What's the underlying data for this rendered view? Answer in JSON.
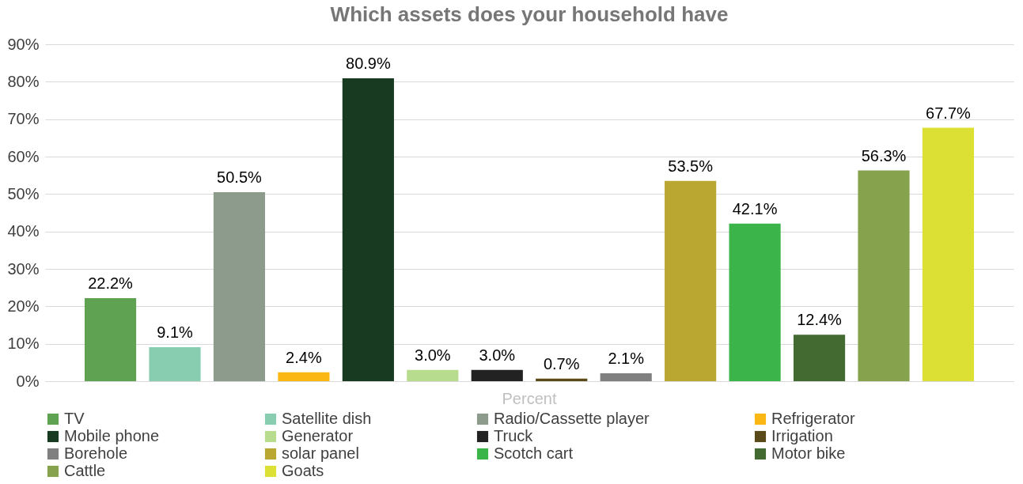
{
  "chart_data": {
    "type": "bar",
    "title": "Which assets does your household have",
    "categories": [
      "Percent"
    ],
    "series": [
      {
        "name": "TV",
        "color": "#5fa352",
        "values": [
          22.2
        ],
        "value_labels": [
          "22.2%"
        ]
      },
      {
        "name": "Satellite dish",
        "color": "#88cdb0",
        "values": [
          9.1
        ],
        "value_labels": [
          "9.1%"
        ]
      },
      {
        "name": "Radio/Cassette player",
        "color": "#8c9b8c",
        "values": [
          50.5
        ],
        "value_labels": [
          "50.5%"
        ]
      },
      {
        "name": "Refrigerator",
        "color": "#fbb815",
        "values": [
          2.4
        ],
        "value_labels": [
          "2.4%"
        ]
      },
      {
        "name": "Mobile phone",
        "color": "#173a20",
        "values": [
          80.9
        ],
        "value_labels": [
          "80.9%"
        ]
      },
      {
        "name": "Generator",
        "color": "#b7dc8e",
        "values": [
          3.0
        ],
        "value_labels": [
          "3.0%"
        ]
      },
      {
        "name": "Truck",
        "color": "#222222",
        "values": [
          3.0
        ],
        "value_labels": [
          "3.0%"
        ]
      },
      {
        "name": "Irrigation",
        "color": "#5a4a1a",
        "values": [
          0.7
        ],
        "value_labels": [
          "0.7%"
        ]
      },
      {
        "name": "Borehole",
        "color": "#808080",
        "values": [
          2.1
        ],
        "value_labels": [
          "2.1%"
        ]
      },
      {
        "name": "solar panel",
        "color": "#b9a731",
        "values": [
          53.5
        ],
        "value_labels": [
          "53.5%"
        ]
      },
      {
        "name": "Scotch cart",
        "color": "#3bb44a",
        "values": [
          42.1
        ],
        "value_labels": [
          "42.1%"
        ]
      },
      {
        "name": "Motor bike",
        "color": "#436a30",
        "values": [
          12.4
        ],
        "value_labels": [
          "12.4%"
        ]
      },
      {
        "name": "Cattle",
        "color": "#86a24c",
        "values": [
          56.3
        ],
        "value_labels": [
          "56.3%"
        ]
      },
      {
        "name": "Goats",
        "color": "#dce034",
        "values": [
          67.7
        ],
        "value_labels": [
          "67.7%"
        ]
      }
    ],
    "ylim": [
      0,
      90
    ],
    "yticks": [
      {
        "value": 0,
        "label": "0%"
      },
      {
        "value": 10,
        "label": "10%"
      },
      {
        "value": 20,
        "label": "20%"
      },
      {
        "value": 30,
        "label": "30%"
      },
      {
        "value": 40,
        "label": "40%"
      },
      {
        "value": 50,
        "label": "50%"
      },
      {
        "value": 60,
        "label": "60%"
      },
      {
        "value": 70,
        "label": "70%"
      },
      {
        "value": 80,
        "label": "80%"
      },
      {
        "value": 90,
        "label": "90%"
      }
    ],
    "grid": "y",
    "legend": "bottom"
  }
}
